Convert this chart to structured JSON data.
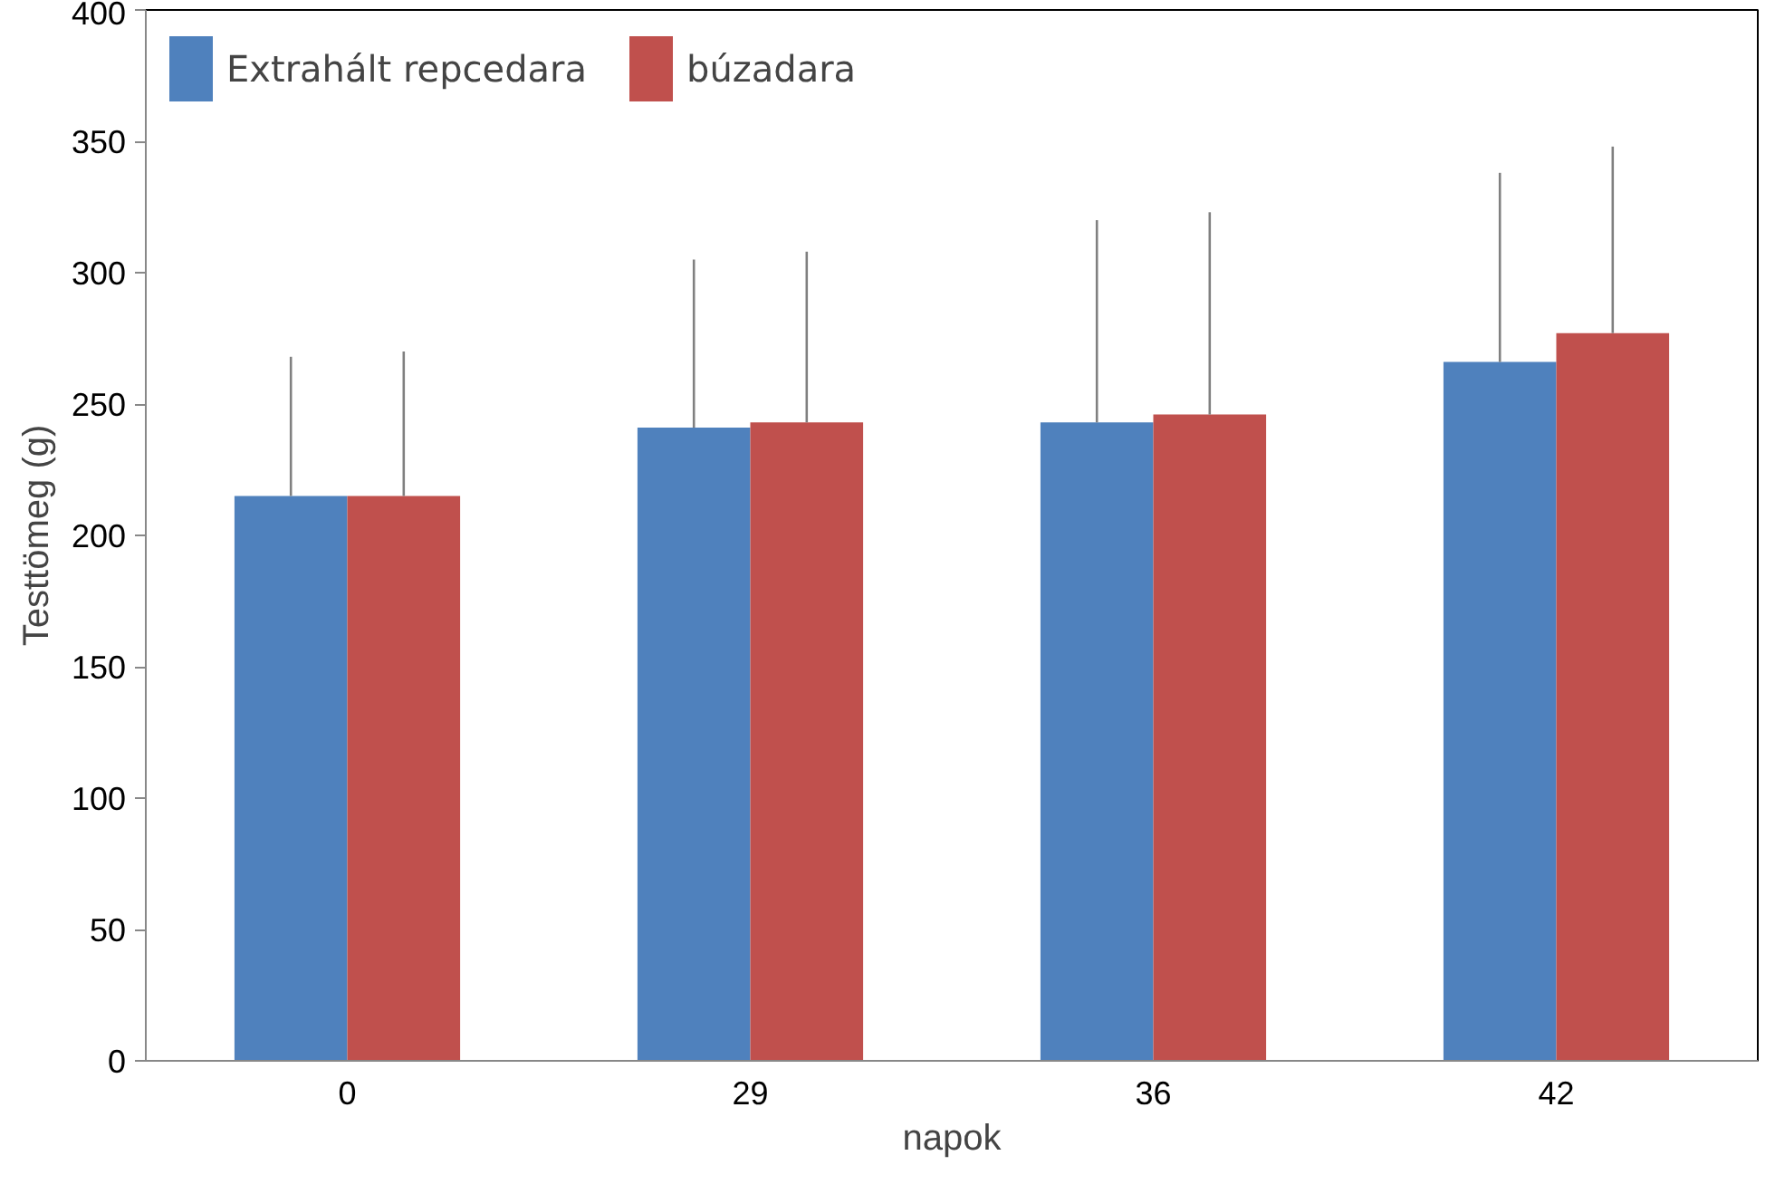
{
  "chart_data": {
    "type": "bar",
    "xlabel": "napok",
    "ylabel": "Testtömeg (g)",
    "categories": [
      "0",
      "29",
      "36",
      "42"
    ],
    "series": [
      {
        "name": "Extrahált repcedara",
        "color": "#4f81bd",
        "values": [
          215,
          241,
          243,
          266
        ],
        "errors": [
          [
            215,
            268
          ],
          [
            241,
            305
          ],
          [
            243,
            320
          ],
          [
            266,
            338
          ]
        ]
      },
      {
        "name": "búzadara",
        "color": "#c0504d",
        "values": [
          215,
          243,
          246,
          277
        ],
        "errors": [
          [
            215,
            270
          ],
          [
            243,
            308
          ],
          [
            246,
            323
          ],
          [
            277,
            348
          ]
        ]
      }
    ],
    "ylim": [
      0,
      400
    ],
    "yticks": [
      0,
      50,
      100,
      150,
      200,
      250,
      300,
      350,
      400
    ],
    "grid": false,
    "legend": "top left"
  }
}
